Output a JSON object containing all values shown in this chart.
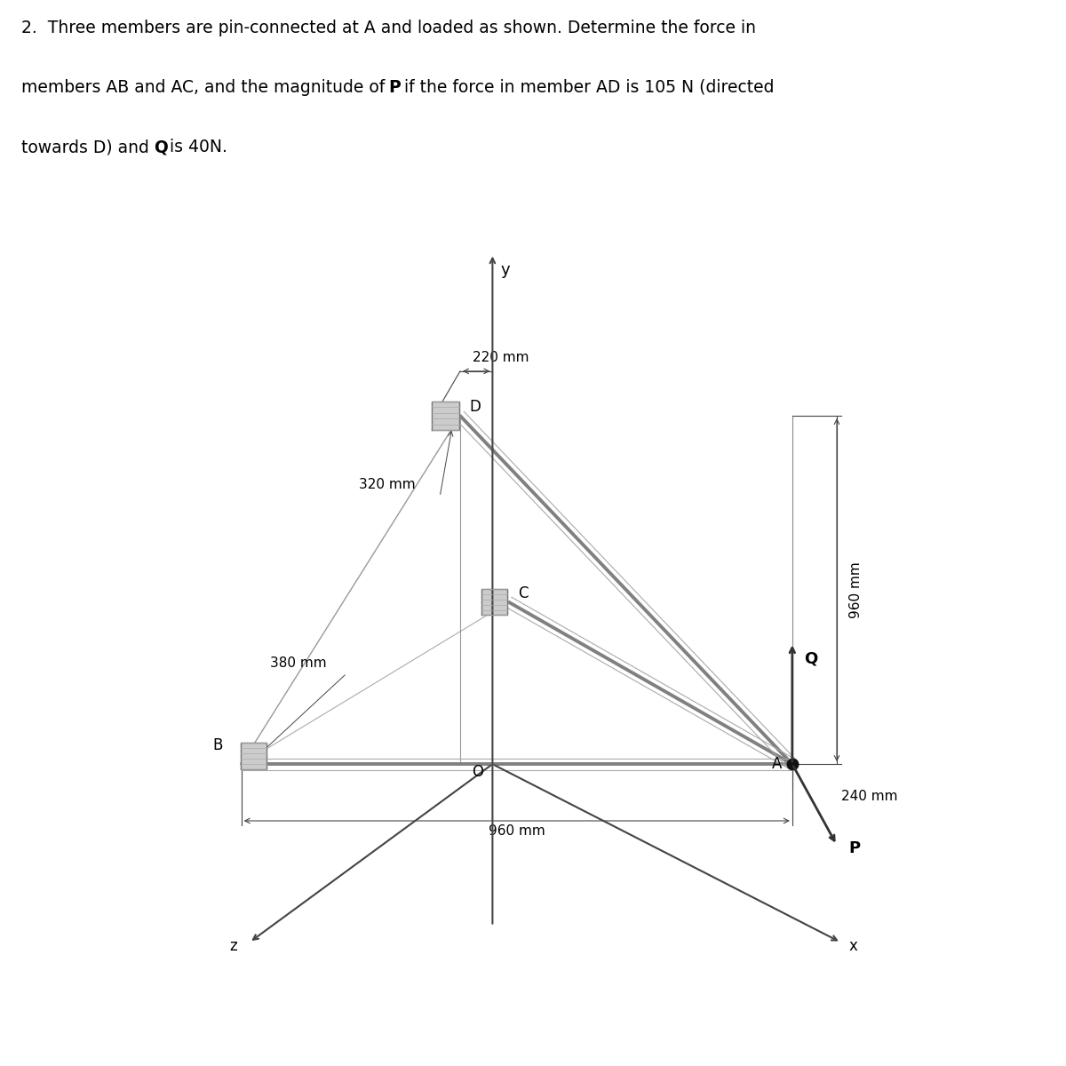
{
  "fig_bg": "#ffffff",
  "diagram_bg": "#d8d8d8",
  "line1": "2.  Three members are pin-connected at A and loaded as shown. Determine the force in",
  "line2_pre": "members AB and AC, and the magnitude of ",
  "line2_bold": "P",
  "line2_post": " if the force in member AD is 105 N (directed",
  "line3_pre": "towards D) and ",
  "line3_bold": "Q",
  "line3_post": " is 40N.",
  "fontsize_text": 13.5,
  "fontsize_label": 12,
  "fontsize_dim": 11,
  "dim_220": "220 mm",
  "dim_960v": "960 mm",
  "dim_320": "320 mm",
  "dim_380": "380 mm",
  "dim_960h": "960 mm",
  "dim_240": "240 mm",
  "member_color": "#888888",
  "member_lw": 3.0,
  "member_lw2": 1.2,
  "struct_color": "#999999",
  "node_color": "#111111",
  "dim_color": "#444444",
  "bracket_face": "#cccccc",
  "bracket_edge": "#777777",
  "arrow_color": "#333333"
}
